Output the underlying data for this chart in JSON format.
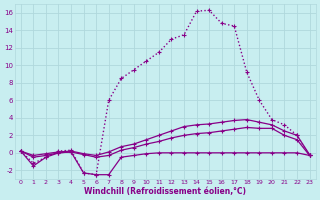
{
  "xlabel": "Windchill (Refroidissement éolien,°C)",
  "bg_color": "#c8eef0",
  "grid_color": "#b0d8dc",
  "line_color": "#880088",
  "xlim": [
    -0.5,
    23.5
  ],
  "ylim": [
    -3.0,
    17.0
  ],
  "yticks": [
    -2,
    0,
    2,
    4,
    6,
    8,
    10,
    12,
    14,
    16
  ],
  "xticks": [
    0,
    1,
    2,
    3,
    4,
    5,
    6,
    7,
    8,
    9,
    10,
    11,
    12,
    13,
    14,
    15,
    16,
    17,
    18,
    19,
    20,
    21,
    22,
    23
  ],
  "series": [
    {
      "y": [
        0.2,
        -1.5,
        -0.5,
        0.0,
        0.1,
        -2.3,
        -2.5,
        -2.5,
        -0.5,
        -0.3,
        -0.1,
        0.0,
        0.0,
        0.0,
        0.0,
        0.0,
        0.0,
        0.0,
        0.0,
        0.0,
        0.0,
        0.0,
        0.0,
        -0.3
      ],
      "linestyle": "-",
      "linewidth": 0.9
    },
    {
      "y": [
        0.2,
        -0.5,
        -0.3,
        0.0,
        0.1,
        -0.2,
        -0.5,
        -0.3,
        0.3,
        0.6,
        1.0,
        1.3,
        1.7,
        2.0,
        2.2,
        2.3,
        2.5,
        2.7,
        2.9,
        2.8,
        2.8,
        2.0,
        1.5,
        -0.3
      ],
      "linestyle": "-",
      "linewidth": 0.9
    },
    {
      "y": [
        0.2,
        -0.3,
        -0.1,
        0.1,
        0.2,
        -0.1,
        -0.3,
        0.1,
        0.7,
        1.0,
        1.5,
        2.0,
        2.5,
        3.0,
        3.2,
        3.3,
        3.5,
        3.7,
        3.8,
        3.5,
        3.2,
        2.5,
        2.0,
        -0.2
      ],
      "linestyle": "-",
      "linewidth": 0.9
    },
    {
      "y": [
        0.2,
        -1.2,
        -0.5,
        0.2,
        0.3,
        -2.3,
        -2.5,
        6.0,
        8.5,
        9.5,
        10.5,
        11.5,
        13.0,
        13.5,
        16.2,
        16.3,
        14.8,
        14.5,
        9.2,
        6.0,
        3.8,
        3.2,
        2.0,
        -0.3
      ],
      "linestyle": ":",
      "linewidth": 1.0
    }
  ]
}
